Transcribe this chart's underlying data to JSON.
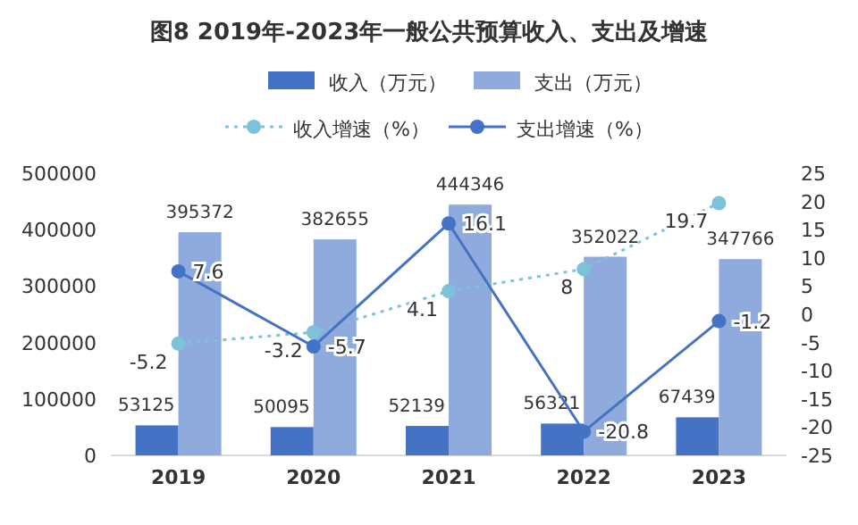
{
  "chart_data": {
    "type": "bar",
    "title": "图8  2019年-2023年一般公共预算收入、支出及增速",
    "categories": [
      "2019",
      "2020",
      "2021",
      "2022",
      "2023"
    ],
    "series": [
      {
        "name": "收入（万元）",
        "color": "#4472c4",
        "values": [
          53125,
          50095,
          52139,
          56321,
          67439
        ]
      },
      {
        "name": "支出（万元）",
        "color": "#8faadc",
        "values": [
          395372,
          382655,
          444346,
          352022,
          347766
        ]
      },
      {
        "name": "收入增速（%）",
        "type": "line",
        "axis": "y2",
        "color": "#7cc3da",
        "line_style": "dotted",
        "marker": "circle",
        "values": [
          -5.2,
          -3.2,
          4.1,
          8,
          19.7
        ]
      },
      {
        "name": "支出增速（%）",
        "type": "line",
        "axis": "y2",
        "color": "#4472c4",
        "line_style": "solid",
        "marker": "circle",
        "values": [
          7.6,
          -5.7,
          16.1,
          -20.8,
          -1.2
        ]
      }
    ],
    "ylim": [
      0,
      500000
    ],
    "yticks": [
      0,
      100000,
      200000,
      300000,
      400000,
      500000
    ],
    "y2lim": [
      -25,
      25
    ],
    "y2ticks": [
      -25,
      -20,
      -15,
      -10,
      -5,
      0,
      5,
      10,
      15,
      20,
      25
    ],
    "data_labels": true,
    "legend": "top"
  }
}
